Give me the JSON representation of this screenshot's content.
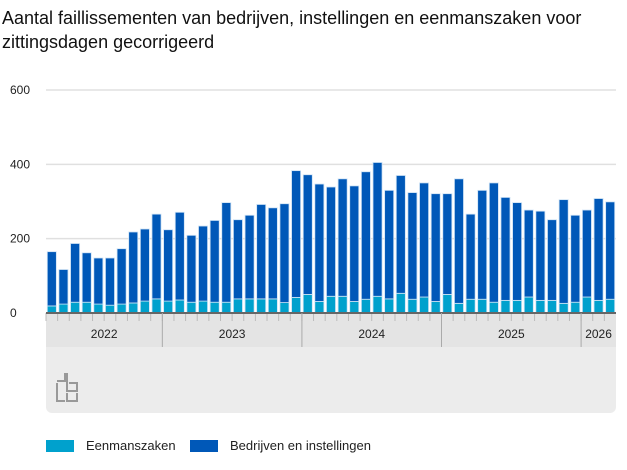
{
  "chart_data": {
    "type": "bar",
    "stacked": true,
    "title": "Aantal faillissementen van bedrijven, instellingen en eenmanszaken voor zittingsdagen gecorrigeerd",
    "xlabel": "",
    "ylabel": "",
    "ylim": [
      0,
      600
    ],
    "yticks": [
      "0",
      "200",
      "400",
      "600"
    ],
    "grid": true,
    "legend_position": "bottom-left",
    "year_labels": [
      {
        "label": "2022",
        "months": 10
      },
      {
        "label": "2023",
        "months": 12
      },
      {
        "label": "2024",
        "months": 12
      },
      {
        "label": "2025",
        "months": 12
      },
      {
        "label": "2026",
        "months": 3
      }
    ],
    "x": [
      "2022-03",
      "2022-04",
      "2022-05",
      "2022-06",
      "2022-07",
      "2022-08",
      "2022-09",
      "2022-10",
      "2022-11",
      "2022-12",
      "2023-01",
      "2023-02",
      "2023-03",
      "2023-04",
      "2023-05",
      "2023-06",
      "2023-07",
      "2023-08",
      "2023-09",
      "2023-10",
      "2023-11",
      "2023-12",
      "2024-01",
      "2024-02",
      "2024-03",
      "2024-04",
      "2024-05",
      "2024-06",
      "2024-07",
      "2024-08",
      "2024-09",
      "2024-10",
      "2024-11",
      "2024-12",
      "2025-01",
      "2025-02",
      "2025-03",
      "2025-04",
      "2025-05",
      "2025-06",
      "2025-07",
      "2025-08",
      "2025-09",
      "2025-10",
      "2025-11",
      "2025-12",
      "2026-01",
      "2026-02",
      "2026-03"
    ],
    "series": [
      {
        "name": "Eenmanszaken",
        "color": "#00a1cd",
        "values": [
          19,
          24,
          29,
          29,
          24,
          21,
          24,
          27,
          32,
          38,
          32,
          35,
          29,
          32,
          29,
          29,
          38,
          38,
          38,
          38,
          28,
          42,
          50,
          31,
          45,
          45,
          31,
          37,
          45,
          38,
          53,
          37,
          43,
          31,
          50,
          26,
          37,
          37,
          29,
          34,
          34,
          43,
          34,
          34,
          26,
          29,
          43,
          34,
          37
        ]
      },
      {
        "name": "Bedrijven en instellingen",
        "color": "#0058b8",
        "values": [
          146,
          93,
          158,
          133,
          124,
          127,
          149,
          191,
          194,
          228,
          192,
          236,
          180,
          202,
          220,
          268,
          213,
          225,
          254,
          245,
          266,
          341,
          322,
          316,
          294,
          316,
          311,
          343,
          360,
          292,
          317,
          287,
          307,
          290,
          271,
          335,
          229,
          293,
          321,
          277,
          263,
          234,
          240,
          217,
          279,
          234,
          234,
          274,
          262
        ]
      }
    ]
  }
}
